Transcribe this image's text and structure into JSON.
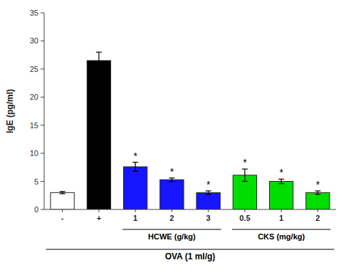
{
  "chart_data": {
    "type": "bar",
    "categories": [
      "-",
      "+",
      "1",
      "2",
      "3",
      "0.5",
      "1",
      "2"
    ],
    "values": [
      3.0,
      26.5,
      7.6,
      5.3,
      3.0,
      6.1,
      5.0,
      3.0
    ],
    "errors": [
      0.2,
      1.5,
      0.8,
      0.3,
      0.3,
      1.1,
      0.4,
      0.3
    ],
    "colors": [
      "white",
      "black",
      "#1515ff",
      "#1515ff",
      "#1515ff",
      "#00dd00",
      "#00dd00",
      "#00dd00"
    ],
    "ylabel": "IgE (pg/ml)",
    "ylim": [
      0,
      35
    ],
    "yticks": [
      0,
      5,
      10,
      15,
      20,
      25,
      30,
      35
    ],
    "grid": false,
    "annotations": [
      {
        "category_index": 2,
        "text": "*"
      },
      {
        "category_index": 3,
        "text": "*"
      },
      {
        "category_index": 4,
        "text": "*"
      },
      {
        "category_index": 5,
        "text": "*"
      },
      {
        "category_index": 6,
        "text": "*"
      },
      {
        "category_index": 7,
        "text": "*"
      }
    ],
    "groups": [
      {
        "label": "HCWE (g/kg)",
        "from": 2,
        "to": 4
      },
      {
        "label": "CKS (mg/kg)",
        "from": 5,
        "to": 7
      },
      {
        "label": "OVA (1 ml/g)",
        "from": 0,
        "to": 7
      }
    ]
  }
}
